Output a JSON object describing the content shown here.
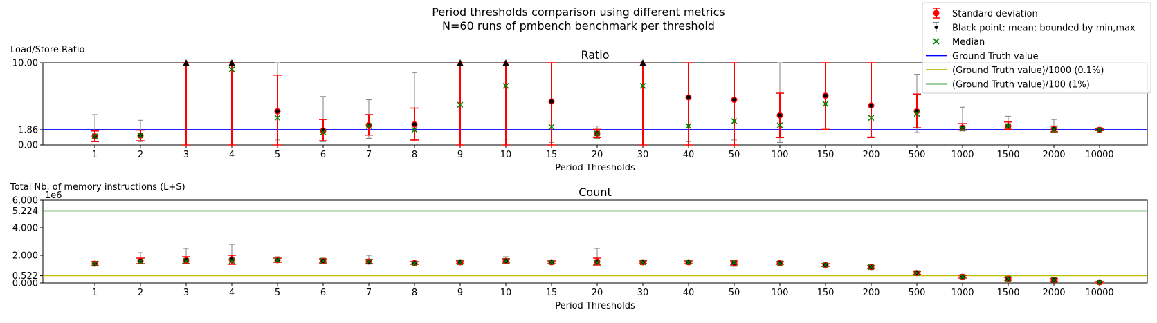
{
  "figure": {
    "title_line1": "Period thresholds comparison using different metrics",
    "title_line2": "N=60 runs of pmbench benchmark per threshold"
  },
  "legend": {
    "position": "top-right",
    "entries": [
      {
        "label": "Standard deviation",
        "kind": "errorbar-red"
      },
      {
        "label": "Black point: mean; bounded by min,max",
        "kind": "errorbar-gray"
      },
      {
        "label": "Median",
        "kind": "x-marker"
      },
      {
        "label": "Ground Truth value",
        "kind": "line-blue"
      },
      {
        "label": "(Ground Truth value)/1000 (0.1%)",
        "kind": "line-yellow"
      },
      {
        "label": "(Ground Truth value)/100 (1%)",
        "kind": "line-green"
      }
    ]
  },
  "colors": {
    "std": "#ff0000",
    "minmax": "#808080",
    "mean": "#000000",
    "median": "#008000",
    "ground_truth": "#0000ff",
    "gt_0_1pct": "#bfbf00",
    "gt_1pct": "#008000",
    "clip_marker": "#000000"
  },
  "chart_data": [
    {
      "type": "scatter",
      "title": "Ratio",
      "ylabel": "Load/Store Ratio",
      "xlabel": "Period Thresholds",
      "categories": [
        "1",
        "2",
        "3",
        "4",
        "5",
        "6",
        "7",
        "8",
        "9",
        "10",
        "15",
        "20",
        "30",
        "40",
        "50",
        "100",
        "150",
        "200",
        "500",
        "1000",
        "1500",
        "2000",
        "10000"
      ],
      "ylim": [
        0,
        10
      ],
      "yticks": [
        0.0,
        1.86,
        10.0
      ],
      "ytick_labels": [
        "0.00",
        "1.86",
        "10.00"
      ],
      "ground_truth": 1.86,
      "mean": [
        1.05,
        1.15,
        12.0,
        12.0,
        4.1,
        1.75,
        2.4,
        2.5,
        12.0,
        12.0,
        5.3,
        1.4,
        12.0,
        5.8,
        5.5,
        3.6,
        6.0,
        4.8,
        4.1,
        2.1,
        2.3,
        1.95,
        1.85
      ],
      "std_low": [
        0.4,
        0.5,
        0,
        0,
        0,
        0.5,
        1.2,
        0.6,
        0,
        0,
        0,
        0.9,
        0,
        0,
        0,
        0.9,
        1.9,
        0.9,
        2.1,
        1.8,
        1.9,
        1.6,
        1.75
      ],
      "std_high": [
        1.7,
        1.8,
        10,
        10,
        8.5,
        3.1,
        3.7,
        4.5,
        10,
        10,
        10,
        1.9,
        10,
        10,
        10,
        6.3,
        10,
        10,
        6.2,
        2.6,
        2.8,
        2.3,
        2.0
      ],
      "min": [
        0.4,
        0.4,
        0,
        0,
        0.6,
        0.4,
        0.8,
        0.5,
        0,
        0.7,
        0.3,
        0.8,
        0,
        0.4,
        0.6,
        0.3,
        1.9,
        1.0,
        1.5,
        1.7,
        1.8,
        1.5,
        1.75
      ],
      "max": [
        3.7,
        3.0,
        10,
        10,
        10,
        5.9,
        5.5,
        8.8,
        10,
        10,
        10,
        2.3,
        10,
        10,
        10,
        10,
        10,
        10,
        8.6,
        4.6,
        3.5,
        3.1,
        2.0
      ],
      "median": [
        1.05,
        1.15,
        null,
        9.2,
        3.3,
        1.55,
        2.3,
        1.85,
        4.9,
        7.2,
        2.2,
        1.4,
        7.2,
        2.3,
        2.9,
        2.4,
        5.0,
        3.3,
        3.8,
        2.0,
        2.3,
        1.85,
        1.85
      ],
      "clipped_above": [
        "3",
        "4",
        "9",
        "10",
        "30"
      ]
    },
    {
      "type": "scatter",
      "title": "Count",
      "ylabel": "Total Nb. of memory instructions (L+S)",
      "xlabel": "Period Thresholds",
      "y_offset_label": "1e6",
      "categories": [
        "1",
        "2",
        "3",
        "4",
        "5",
        "6",
        "7",
        "8",
        "9",
        "10",
        "15",
        "20",
        "30",
        "40",
        "50",
        "100",
        "150",
        "200",
        "500",
        "1000",
        "1500",
        "2000",
        "10000"
      ],
      "ylim": [
        0,
        6
      ],
      "yticks": [
        0.0,
        0.522,
        2.0,
        4.0,
        5.224,
        6.0
      ],
      "ytick_labels": [
        "0.000",
        "0.522",
        "2.000",
        "4.000",
        "5.224",
        "6.000"
      ],
      "gt_0_1pct": 0.522,
      "gt_1pct": 5.224,
      "mean": [
        1.4,
        1.6,
        1.65,
        1.7,
        1.65,
        1.6,
        1.55,
        1.45,
        1.5,
        1.6,
        1.5,
        1.55,
        1.5,
        1.5,
        1.45,
        1.45,
        1.3,
        1.15,
        0.72,
        0.45,
        0.3,
        0.22,
        0.05
      ],
      "std_low": [
        1.25,
        1.4,
        1.4,
        1.35,
        1.5,
        1.45,
        1.4,
        1.35,
        1.4,
        1.45,
        1.4,
        1.3,
        1.4,
        1.4,
        1.3,
        1.35,
        1.2,
        1.05,
        0.62,
        0.35,
        0.2,
        0.12,
        0.0
      ],
      "std_high": [
        1.55,
        1.8,
        1.9,
        2.0,
        1.8,
        1.75,
        1.7,
        1.55,
        1.6,
        1.75,
        1.6,
        1.8,
        1.6,
        1.6,
        1.6,
        1.55,
        1.4,
        1.25,
        0.82,
        0.55,
        0.4,
        0.32,
        0.1
      ],
      "min": [
        1.3,
        1.4,
        1.45,
        1.45,
        1.5,
        1.45,
        1.45,
        1.35,
        1.4,
        1.45,
        1.4,
        1.4,
        1.4,
        1.4,
        1.2,
        1.35,
        1.2,
        1.05,
        0.62,
        0.35,
        0.15,
        0.1,
        0.0
      ],
      "max": [
        1.55,
        2.2,
        2.5,
        2.8,
        1.9,
        1.8,
        2.0,
        1.6,
        1.6,
        1.9,
        1.6,
        2.5,
        1.65,
        1.65,
        1.65,
        1.6,
        1.45,
        1.25,
        0.85,
        0.6,
        0.45,
        0.35,
        0.1
      ],
      "median": [
        1.4,
        1.55,
        1.6,
        1.6,
        1.65,
        1.6,
        1.55,
        1.4,
        1.5,
        1.6,
        1.5,
        1.5,
        1.5,
        1.5,
        1.5,
        1.4,
        1.3,
        1.15,
        0.72,
        0.45,
        0.3,
        0.22,
        0.05
      ]
    }
  ]
}
